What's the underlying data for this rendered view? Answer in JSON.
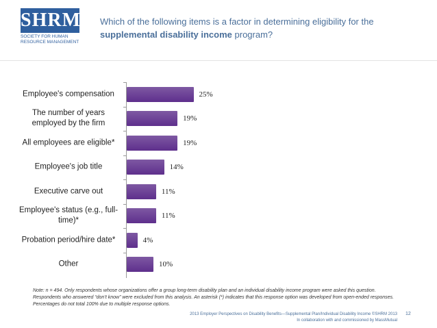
{
  "header": {
    "logo": "SHRM",
    "logo_subtitle": "SOCIETY FOR HUMAN RESOURCE MANAGEMENT",
    "title_lead": "Which of the following items is a factor in determining eligibility for the",
    "title_emphasis": "supplemental disability income",
    "title_end": "program?"
  },
  "chart_data": {
    "type": "bar",
    "orientation": "horizontal",
    "color": "#5e2f8c",
    "categories": [
      "Employee's compensation",
      "The number of years employed by the firm",
      "All employees are eligible*",
      "Employee's job title",
      "Executive carve out",
      "Employee's status (e.g., full-time)*",
      "Probation period/hire date*",
      "Other"
    ],
    "values": [
      25,
      19,
      19,
      14,
      11,
      11,
      4,
      10
    ],
    "value_labels": [
      "25%",
      "19%",
      "19%",
      "14%",
      "11%",
      "11%",
      "4%",
      "10%"
    ]
  },
  "note": "Note: n = 494. Only respondents whose organizations offer a group long-term disability plan and an individual disability income program were asked this question. Respondents who answered “don’t know” were excluded from this analysis. An asterisk (*) indicates that this response option was developed from open-ended responses. Percentages do not total 100% due to multiple response options.",
  "footer": {
    "source": "2013 Employer Perspectives on Disability Benefits—Supplemental Plan/Individual Disability Income ©SHRM 2013",
    "credit": "In collaboration with and commissioned by MassMutual",
    "page": "12"
  }
}
